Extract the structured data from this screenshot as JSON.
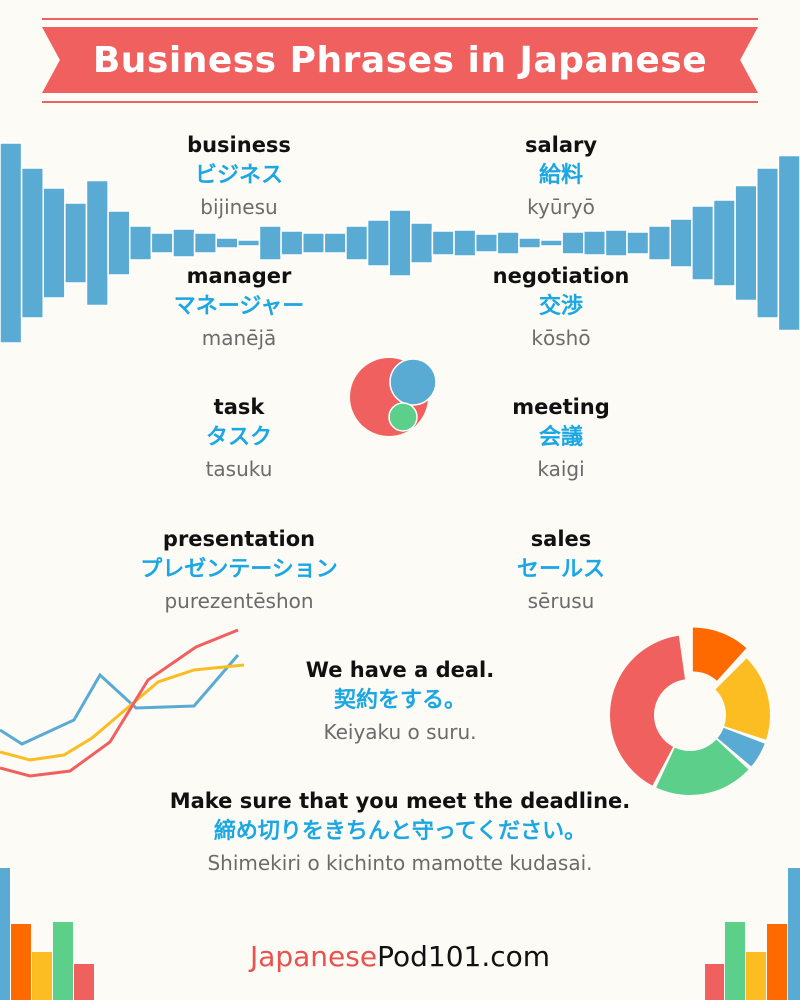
{
  "title": "Business Phrases in Japanese",
  "vocab": [
    {
      "en": "business",
      "jp": "ビジネス",
      "ro": "bijinesu"
    },
    {
      "en": "salary",
      "jp": "給料",
      "ro": "kyūryō"
    },
    {
      "en": "manager",
      "jp": "マネージャー",
      "ro": "manējā"
    },
    {
      "en": "negotiation",
      "jp": "交渉",
      "ro": "kōshō"
    },
    {
      "en": "task",
      "jp": "タスク",
      "ro": "tasuku"
    },
    {
      "en": "meeting",
      "jp": "会議",
      "ro": "kaigi"
    },
    {
      "en": "presentation",
      "jp": "プレゼンテーション",
      "ro": "purezentēshon"
    },
    {
      "en": "sales",
      "jp": "セールス",
      "ro": "sērusu"
    }
  ],
  "sentences": [
    {
      "en": "We have a deal.",
      "jp": "契約をする。",
      "ro": "Keiyaku o suru."
    },
    {
      "en": "Make sure that you meet the deadline.",
      "jp": "締め切りをきちんと守ってください。",
      "ro": "Shimekiri o kichinto mamotte kudasai."
    }
  ],
  "footer": {
    "brand_a": "Japanese",
    "brand_b": "Pod101.com"
  },
  "colors": {
    "red": "#f0605e",
    "blue": "#5aabd4",
    "green": "#5ccf8a",
    "yellow": "#fbbd22",
    "orange": "#ff6a00",
    "text_blue": "#1ba7e3"
  }
}
